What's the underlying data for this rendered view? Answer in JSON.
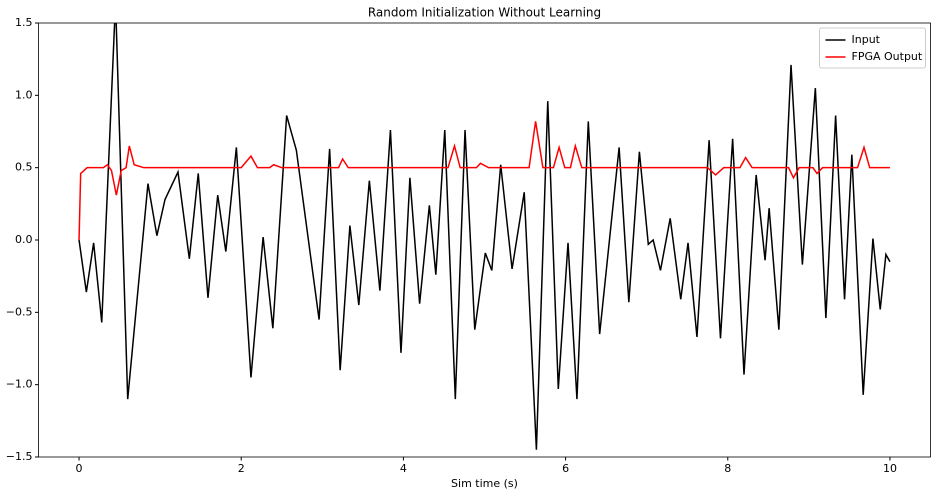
{
  "chart_data": {
    "type": "line",
    "title": "Random Initialization Without Learning",
    "x_label": "Sim time (s)",
    "xlim": [
      -0.5,
      10.5
    ],
    "xticks": [
      0,
      2,
      4,
      6,
      8,
      10
    ],
    "ylim": [
      -1.5,
      1.5
    ],
    "yticks": [
      {
        "value": -1.5,
        "label": "−1.5"
      },
      {
        "value": -1.0,
        "label": "−1.0"
      },
      {
        "value": -0.5,
        "label": "−0.5"
      },
      {
        "value": 0,
        "label": "0.0"
      },
      0.5,
      {
        "value": 1.0,
        "label": "1.0"
      },
      1.5
    ],
    "legend": "upper right",
    "series": [
      {
        "name": "Input",
        "color": "#000000",
        "x": [
          0,
          0.09,
          0.18,
          0.28,
          0.45,
          0.6,
          0.85,
          0.96,
          1.06,
          1.22,
          1.36,
          1.47,
          1.59,
          1.71,
          1.81,
          1.94,
          2.12,
          2.27,
          2.39,
          2.56,
          2.68,
          2.96,
          3.09,
          3.22,
          3.34,
          3.45,
          3.58,
          3.71,
          3.84,
          3.97,
          4.08,
          4.2,
          4.32,
          4.4,
          4.51,
          4.64,
          4.76,
          4.88,
          5.01,
          5.09,
          5.2,
          5.34,
          5.49,
          5.64,
          5.78,
          5.91,
          6.03,
          6.14,
          6.28,
          6.42,
          6.66,
          6.78,
          6.91,
          7.02,
          7.08,
          7.17,
          7.29,
          7.42,
          7.51,
          7.62,
          7.77,
          7.91,
          8.06,
          8.2,
          8.35,
          8.46,
          8.51,
          8.63,
          8.78,
          8.92,
          9.08,
          9.21,
          9.33,
          9.44,
          9.53,
          9.67,
          9.79,
          9.88,
          9.95,
          10
        ],
        "values": [
          0,
          -0.36,
          -0.02,
          -0.57,
          1.65,
          -1.1,
          0.39,
          0.03,
          0.28,
          0.47,
          -0.13,
          0.46,
          -0.4,
          0.31,
          -0.08,
          0.64,
          -0.95,
          0.02,
          -0.61,
          0.86,
          0.62,
          -0.55,
          0.63,
          -0.9,
          0.1,
          -0.45,
          0.41,
          -0.35,
          0.76,
          -0.78,
          0.43,
          -0.44,
          0.24,
          -0.24,
          0.76,
          -1.1,
          0.76,
          -0.62,
          -0.09,
          -0.21,
          0.52,
          -0.2,
          0.33,
          -1.45,
          0.96,
          -1.03,
          -0.02,
          -1.1,
          0.82,
          -0.65,
          0.64,
          -0.43,
          0.61,
          -0.03,
          0,
          -0.21,
          0.15,
          -0.41,
          -0.02,
          -0.67,
          0.69,
          -0.68,
          0.7,
          -0.93,
          0.45,
          -0.14,
          0.22,
          -0.62,
          1.21,
          -0.17,
          1.05,
          -0.54,
          0.86,
          -0.41,
          0.59,
          -1.07,
          0.01,
          -0.48,
          -0.1,
          -0.15
        ]
      },
      {
        "name": "FPGA Output",
        "color": "#ff0000",
        "x": [
          0,
          0.02,
          0.1,
          0.3,
          0.35,
          0.4,
          0.46,
          0.52,
          0.58,
          0.62,
          0.68,
          0.8,
          2.0,
          2.12,
          2.2,
          2.35,
          2.4,
          2.5,
          3.2,
          3.25,
          3.32,
          4.55,
          4.63,
          4.7,
          4.9,
          4.95,
          5.05,
          5.55,
          5.63,
          5.72,
          5.85,
          5.92,
          5.99,
          6.06,
          6.12,
          6.2,
          7.75,
          7.85,
          7.95,
          8.15,
          8.22,
          8.3,
          8.75,
          8.81,
          8.88,
          9.05,
          9.1,
          9.17,
          9.6,
          9.68,
          9.75,
          10
        ],
        "values": [
          0,
          0.46,
          0.5,
          0.5,
          0.52,
          0.48,
          0.31,
          0.48,
          0.5,
          0.65,
          0.52,
          0.5,
          0.5,
          0.58,
          0.5,
          0.5,
          0.52,
          0.5,
          0.5,
          0.56,
          0.5,
          0.5,
          0.65,
          0.5,
          0.5,
          0.53,
          0.5,
          0.5,
          0.82,
          0.5,
          0.5,
          0.64,
          0.5,
          0.5,
          0.65,
          0.5,
          0.5,
          0.45,
          0.5,
          0.5,
          0.57,
          0.5,
          0.5,
          0.43,
          0.5,
          0.5,
          0.46,
          0.5,
          0.5,
          0.64,
          0.5,
          0.5
        ]
      }
    ]
  }
}
